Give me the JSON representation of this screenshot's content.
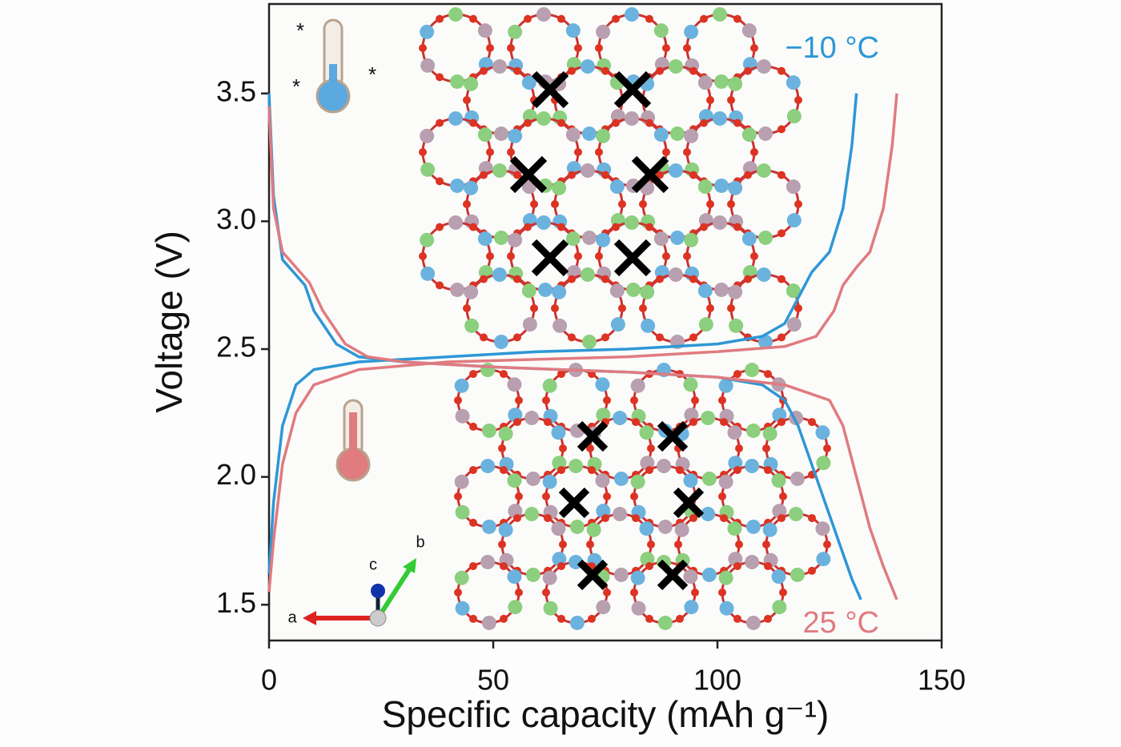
{
  "chart_data": {
    "type": "line",
    "xlabel": "Specific capacity (mAh g⁻¹)",
    "ylabel": "Voltage (V)",
    "xlim": [
      0,
      150
    ],
    "ylim": [
      1.36,
      3.85
    ],
    "xticks": [
      0,
      50,
      100,
      150
    ],
    "yticks": [
      1.5,
      {
        "value": 2,
        "label": "2.0"
      },
      2.5,
      {
        "value": 3,
        "label": "3.0"
      },
      3.5
    ],
    "grid": false,
    "axis_letters": [
      "a",
      "b",
      "c"
    ],
    "series": [
      {
        "name": "−10 °C",
        "color": "#2e97d6",
        "x": [
          0,
          1,
          3,
          6,
          10,
          20,
          40,
          60,
          80,
          100,
          110,
          115,
          118,
          121,
          125,
          128,
          130,
          131
        ],
        "values": [
          1.62,
          1.9,
          2.2,
          2.36,
          2.42,
          2.45,
          2.47,
          2.49,
          2.5,
          2.52,
          2.55,
          2.6,
          2.7,
          2.8,
          2.88,
          3.05,
          3.3,
          3.5
        ]
      },
      {
        "color": "#2e97d6",
        "x": [
          0,
          1,
          3,
          6,
          8,
          10,
          15,
          20,
          30,
          50,
          80,
          100,
          110,
          115,
          118,
          121,
          124,
          127,
          130,
          132
        ],
        "values": [
          3.5,
          3.1,
          2.85,
          2.79,
          2.75,
          2.65,
          2.52,
          2.47,
          2.45,
          2.43,
          2.41,
          2.39,
          2.36,
          2.3,
          2.2,
          2.05,
          1.9,
          1.75,
          1.6,
          1.52
        ]
      },
      {
        "color": "#e07b80",
        "x": [
          0,
          1,
          3,
          6,
          10,
          20,
          40,
          60,
          80,
          100,
          115,
          122,
          126,
          128,
          131,
          134,
          137,
          139,
          140
        ],
        "values": [
          1.55,
          1.75,
          2.05,
          2.25,
          2.36,
          2.42,
          2.45,
          2.46,
          2.47,
          2.49,
          2.51,
          2.55,
          2.65,
          2.75,
          2.82,
          2.88,
          3.05,
          3.3,
          3.5
        ]
      },
      {
        "name": "25 °C",
        "color": "#e07b80",
        "x": [
          0,
          1,
          3,
          6,
          9,
          12,
          17,
          22,
          30,
          50,
          80,
          100,
          115,
          125,
          128,
          131,
          134,
          137,
          140
        ],
        "values": [
          3.45,
          3.05,
          2.88,
          2.82,
          2.76,
          2.65,
          2.52,
          2.47,
          2.45,
          2.43,
          2.41,
          2.39,
          2.36,
          2.3,
          2.2,
          2.0,
          1.8,
          1.65,
          1.52
        ]
      }
    ]
  }
}
